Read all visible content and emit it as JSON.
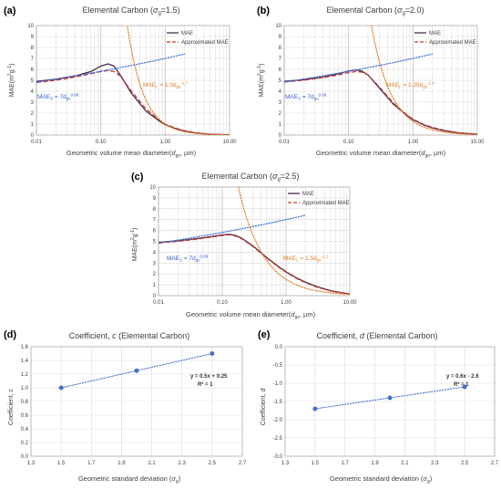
{
  "colors": {
    "mae": "#4a2d52",
    "approx": "#c0392b",
    "small_fit": "#3a6fd8",
    "large_fit": "#e07b20",
    "annot_small": "#2f5bd0",
    "annot_large": "#e07b20",
    "coef_points": "#4472c4",
    "grid": "#d9d9d9"
  },
  "panels": {
    "a": {
      "letter": "(a)",
      "title_main": "Elemental Carbon (",
      "title_sigma": "σ",
      "title_sub": "g",
      "title_end": "=1.5)",
      "legend_mae": "MAE",
      "legend_approx": "Approximated MAE",
      "annot_small_main": "MAE",
      "annot_small_sub": "S",
      "annot_small_eq": " = 7d",
      "annot_small_dsub": "gv",
      "annot_small_exp": "0.08",
      "annot_large_main": "MAE",
      "annot_large_sub": "L",
      "annot_large_eq": " = 1.0d",
      "annot_large_dsub": "gv",
      "annot_large_exp": "-1.7"
    },
    "b": {
      "letter": "(b)",
      "title_main": "Elemental Carbon (",
      "title_sigma": "σ",
      "title_sub": "g",
      "title_end": "=2.0)",
      "legend_mae": "MAE",
      "legend_approx": "Approximated MAE",
      "annot_small_main": "MAE",
      "annot_small_sub": "S",
      "annot_small_eq": " = 7d",
      "annot_small_dsub": "gv",
      "annot_small_exp": "0.08",
      "annot_large_main": "MAE",
      "annot_large_sub": "L",
      "annot_large_eq": " = 1.25d",
      "annot_large_dsub": "gv",
      "annot_large_exp": "-1.4"
    },
    "c": {
      "letter": "(c)",
      "title_main": "Elemental Carbon (",
      "title_sigma": "σ",
      "title_sub": "g",
      "title_end": "=2.5)",
      "legend_mae": "MAE",
      "legend_approx": "Approximated MAE",
      "annot_small_main": "MAE",
      "annot_small_sub": "S",
      "annot_small_eq": " = 7d",
      "annot_small_dsub": "gv",
      "annot_small_exp": "0.08",
      "annot_large_main": "MAE",
      "annot_large_sub": "L",
      "annot_large_eq": " = 1.5d",
      "annot_large_dsub": "gv",
      "annot_large_exp": "-1.1"
    },
    "d": {
      "letter": "(d)",
      "title_pre": "Coefficient, ",
      "title_var": "c",
      "title_post": " (Elemental Carbon)",
      "eq_line1": "y = 0.5x + 0.25",
      "eq_line2": "R² = 1"
    },
    "e": {
      "letter": "(e)",
      "title_pre": "Coefficient, ",
      "title_var": "d",
      "title_post": " (Elemental Carbon)",
      "eq_line1": "y = 0.6x - 2.6",
      "eq_line2": "R² = 1"
    }
  },
  "axis_text": {
    "mae_ylabel_main": "MAE(m",
    "mae_ylabel_sup1": "2",
    "mae_ylabel_mid": "g",
    "mae_ylabel_sup2": "-1",
    "mae_ylabel_end": ")",
    "mae_xlabel_main": "Geometric volume mean diameter(",
    "mae_xlabel_d": "d",
    "mae_xlabel_sub": "gv",
    "mae_xlabel_end": ", µm)",
    "coef_xlabel_main": "Geometric standard deviation (",
    "coef_xlabel_sigma": "σ",
    "coef_xlabel_sub": "g",
    "coef_xlabel_end": ")",
    "coef_c_ylabel_pre": "Coefficient, ",
    "coef_c_ylabel_var": "c",
    "coef_d_ylabel_pre": "Coefficient, ",
    "coef_d_ylabel_var": "d"
  },
  "chart_data": [
    {
      "id": "a",
      "type": "line",
      "title": "Elemental Carbon (σg=1.5)",
      "xlabel": "Geometric volume mean diameter(dgv, µm)",
      "ylabel": "MAE(m2g-1)",
      "xscale": "log",
      "xlim": [
        0.01,
        10
      ],
      "ylim": [
        0,
        10
      ],
      "x_ticks": [
        "0.01",
        "0.10",
        "1.00",
        "10.00"
      ],
      "y_ticks": [
        "0",
        "1",
        "2",
        "3",
        "4",
        "5",
        "6",
        "7",
        "8",
        "9",
        "10"
      ],
      "grid": true,
      "legend": "top-right",
      "series": [
        {
          "name": "MAE",
          "style": "solid",
          "x": [
            0.01,
            0.02,
            0.04,
            0.07,
            0.1,
            0.13,
            0.16,
            0.2,
            0.3,
            0.5,
            0.8,
            1.0,
            1.5,
            2.0,
            3.0,
            5.0,
            10.0
          ],
          "y": [
            4.9,
            5.1,
            5.4,
            5.8,
            6.3,
            6.5,
            6.3,
            5.5,
            3.8,
            2.2,
            1.3,
            0.95,
            0.55,
            0.35,
            0.18,
            0.07,
            0.02
          ]
        },
        {
          "name": "Approximated MAE",
          "style": "dashed",
          "x": [
            0.01,
            0.02,
            0.04,
            0.07,
            0.1,
            0.13,
            0.16,
            0.2,
            0.3,
            0.5,
            0.8,
            1.0,
            1.5,
            2.0,
            3.0,
            5.0,
            10.0
          ],
          "y": [
            4.8,
            5.0,
            5.3,
            5.6,
            5.8,
            5.9,
            5.8,
            5.4,
            4.0,
            2.4,
            1.4,
            1.0,
            0.6,
            0.4,
            0.2,
            0.08,
            0.02
          ]
        },
        {
          "style": "dotted",
          "role": "small_fit",
          "x_range": [
            0.01,
            2.0
          ],
          "coef": 7,
          "exp": 0.08
        },
        {
          "style": "dotted",
          "role": "large_fit",
          "x_range": [
            0.16,
            10.0
          ],
          "coef": 1.0,
          "exp": -1.7
        }
      ]
    },
    {
      "id": "b",
      "type": "line",
      "title": "Elemental Carbon (σg=2.0)",
      "xlabel": "Geometric volume mean diameter(dgv, µm)",
      "ylabel": "MAE(m2g-1)",
      "xscale": "log",
      "xlim": [
        0.01,
        10
      ],
      "ylim": [
        0,
        10
      ],
      "x_ticks": [
        "0.01",
        "0.10",
        "1.00",
        "10.00"
      ],
      "y_ticks": [
        "0",
        "1",
        "2",
        "3",
        "4",
        "5",
        "6",
        "7",
        "8",
        "9",
        "10"
      ],
      "grid": true,
      "legend": "top-right",
      "series": [
        {
          "name": "MAE",
          "style": "solid",
          "x": [
            0.01,
            0.02,
            0.04,
            0.07,
            0.1,
            0.13,
            0.16,
            0.2,
            0.3,
            0.5,
            0.8,
            1.0,
            1.5,
            2.0,
            3.0,
            5.0,
            10.0
          ],
          "y": [
            4.9,
            5.05,
            5.3,
            5.6,
            5.85,
            5.95,
            5.85,
            5.5,
            4.3,
            2.8,
            1.8,
            1.4,
            0.9,
            0.65,
            0.4,
            0.2,
            0.07
          ]
        },
        {
          "name": "Approximated MAE",
          "style": "dashed",
          "x": [
            0.01,
            0.02,
            0.04,
            0.07,
            0.1,
            0.13,
            0.16,
            0.2,
            0.3,
            0.5,
            0.8,
            1.0,
            1.5,
            2.0,
            3.0,
            5.0,
            10.0
          ],
          "y": [
            4.85,
            5.0,
            5.25,
            5.5,
            5.7,
            5.8,
            5.75,
            5.5,
            4.4,
            2.9,
            1.85,
            1.45,
            0.95,
            0.7,
            0.45,
            0.22,
            0.08
          ]
        },
        {
          "style": "dotted",
          "role": "small_fit",
          "x_range": [
            0.01,
            2.0
          ],
          "coef": 7,
          "exp": 0.08
        },
        {
          "style": "dotted",
          "role": "large_fit",
          "x_range": [
            0.16,
            10.0
          ],
          "coef": 1.25,
          "exp": -1.4
        }
      ]
    },
    {
      "id": "c",
      "type": "line",
      "title": "Elemental Carbon (σg=2.5)",
      "xlabel": "Geometric volume mean diameter(dgv, µm)",
      "ylabel": "MAE(m2g-1)",
      "xscale": "log",
      "xlim": [
        0.01,
        10
      ],
      "ylim": [
        0,
        10
      ],
      "x_ticks": [
        "0.01",
        "0.10",
        "1.00",
        "10.00"
      ],
      "y_ticks": [
        "0",
        "1",
        "2",
        "3",
        "4",
        "5",
        "6",
        "7",
        "8",
        "9",
        "10"
      ],
      "grid": true,
      "legend": "top-right",
      "series": [
        {
          "name": "MAE",
          "style": "solid",
          "x": [
            0.01,
            0.02,
            0.04,
            0.07,
            0.1,
            0.13,
            0.16,
            0.2,
            0.3,
            0.5,
            0.8,
            1.0,
            1.5,
            2.0,
            3.0,
            5.0,
            10.0
          ],
          "y": [
            4.9,
            5.05,
            5.25,
            5.45,
            5.6,
            5.65,
            5.55,
            5.3,
            4.6,
            3.5,
            2.6,
            2.2,
            1.6,
            1.25,
            0.85,
            0.45,
            0.15
          ]
        },
        {
          "name": "Approximated MAE",
          "style": "dashed",
          "x": [
            0.01,
            0.02,
            0.04,
            0.07,
            0.1,
            0.13,
            0.16,
            0.2,
            0.3,
            0.5,
            0.8,
            1.0,
            1.5,
            2.0,
            3.0,
            5.0,
            10.0
          ],
          "y": [
            4.85,
            5.0,
            5.2,
            5.4,
            5.55,
            5.6,
            5.5,
            5.25,
            4.55,
            3.45,
            2.55,
            2.15,
            1.55,
            1.2,
            0.8,
            0.42,
            0.14
          ]
        },
        {
          "style": "dotted",
          "role": "small_fit",
          "x_range": [
            0.01,
            2.0
          ],
          "coef": 7,
          "exp": 0.08
        },
        {
          "style": "dotted",
          "role": "large_fit",
          "x_range": [
            0.09,
            10.0
          ],
          "coef": 1.5,
          "exp": -1.1
        }
      ]
    },
    {
      "id": "d",
      "type": "scatter",
      "title": "Coefficient, c (Elemental Carbon)",
      "xlabel": "Geometric standard deviation (σg)",
      "ylabel": "Coefficient, c",
      "xlim": [
        1.3,
        2.7
      ],
      "ylim": [
        0.0,
        1.6
      ],
      "x_ticks": [
        "1.3",
        "1.5",
        "1.7",
        "1.9",
        "2.1",
        "2.3",
        "2.5",
        "2.7"
      ],
      "y_ticks": [
        "0.0",
        "0.2",
        "0.4",
        "0.6",
        "0.8",
        "1.0",
        "1.2",
        "1.4",
        "1.6"
      ],
      "grid": true,
      "series": [
        {
          "style": "markers",
          "x": [
            1.5,
            2.0,
            2.5
          ],
          "y": [
            1.0,
            1.25,
            1.5
          ]
        },
        {
          "style": "dotted",
          "role": "trendline",
          "slope": 0.5,
          "intercept": 0.25,
          "x_range": [
            1.5,
            2.5
          ]
        }
      ],
      "annotations": [
        "y = 0.5x + 0.25",
        "R² = 1"
      ]
    },
    {
      "id": "e",
      "type": "scatter",
      "title": "Coefficient, d (Elemental Carbon)",
      "xlabel": "Geometric standard deviation (σg)",
      "ylabel": "Coefficient, d",
      "xlim": [
        1.3,
        2.7
      ],
      "ylim": [
        -3.0,
        0.0
      ],
      "x_ticks": [
        "1.3",
        "1.5",
        "1.7",
        "1.9",
        "2.1",
        "2.3",
        "2.5",
        "2.7"
      ],
      "y_ticks": [
        "-3.0",
        "-2.5",
        "-2.0",
        "-1.5",
        "-1.0",
        "-0.5",
        "0.0"
      ],
      "grid": true,
      "series": [
        {
          "style": "markers",
          "x": [
            1.5,
            2.0,
            2.5
          ],
          "y": [
            -1.7,
            -1.4,
            -1.1
          ]
        },
        {
          "style": "dotted",
          "role": "trendline",
          "slope": 0.6,
          "intercept": -2.6,
          "x_range": [
            1.5,
            2.5
          ]
        }
      ],
      "annotations": [
        "y = 0.6x - 2.6",
        "R² = 1"
      ]
    }
  ]
}
